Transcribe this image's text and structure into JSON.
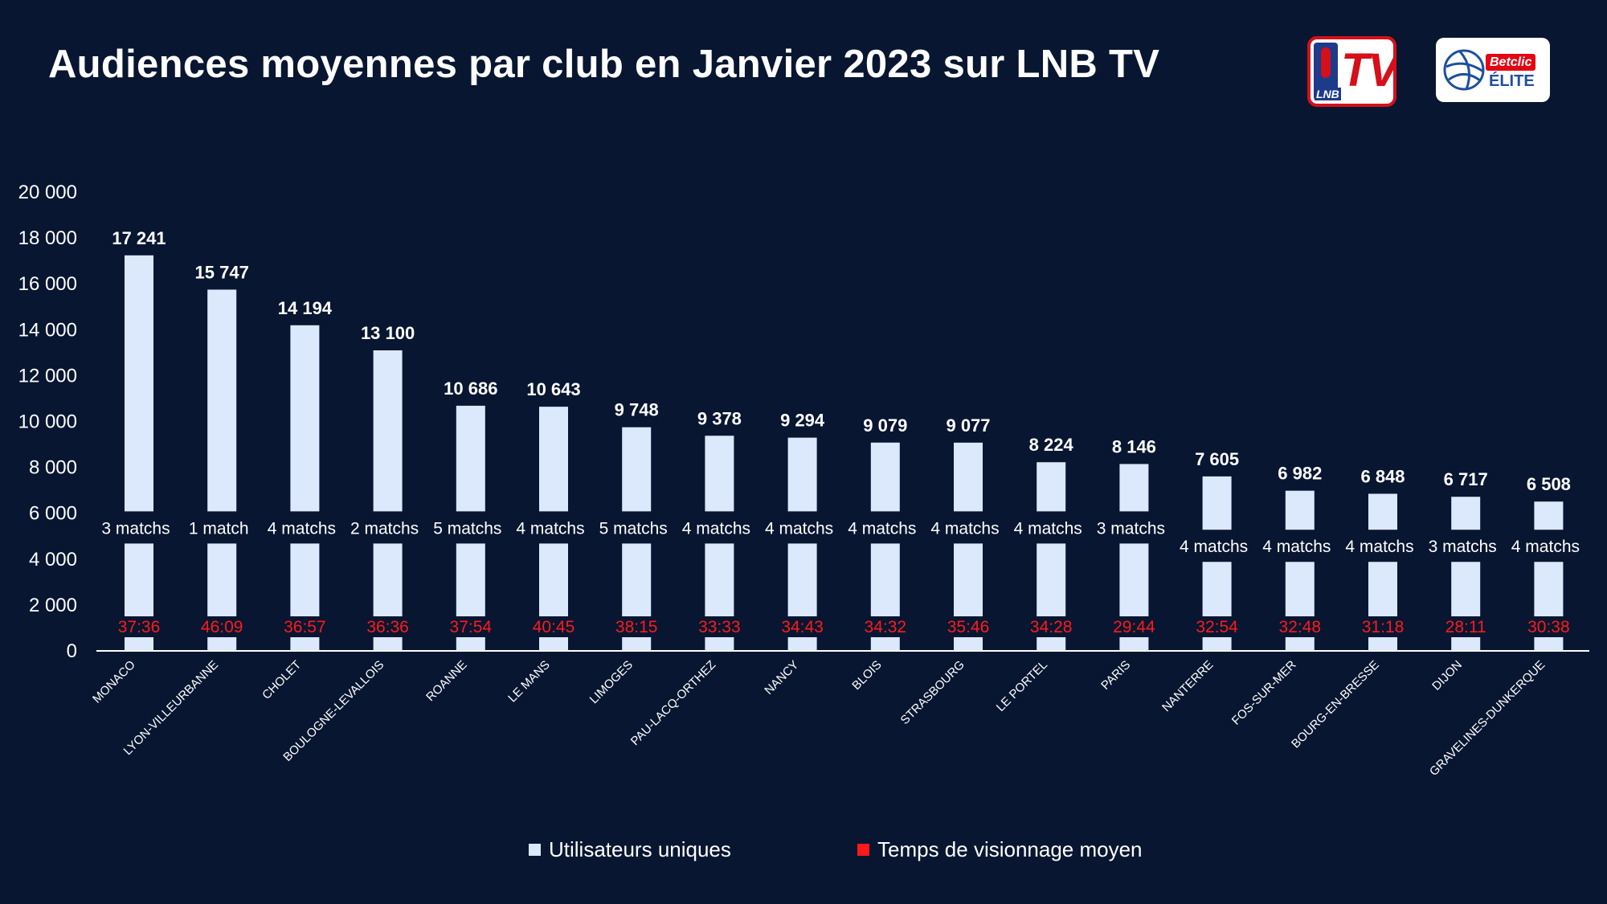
{
  "header": {
    "title": "Audiences moyennes par club en Janvier 2023 sur LNB TV",
    "logo_lnbtv": {
      "small_text": "LNB",
      "big_text": "TV"
    },
    "logo_betclic": {
      "brand": "Betclic",
      "league": "ÉLITE"
    }
  },
  "colors": {
    "background": "#081631",
    "bar": "#dce8fb",
    "time_text": "#ff1a1a",
    "axis": "#ffffff"
  },
  "chart_data": {
    "type": "bar",
    "title": "Audiences moyennes par club en Janvier 2023 sur LNB TV",
    "xlabel": "",
    "ylabel": "",
    "ylim": [
      0,
      20000
    ],
    "yticks": [
      0,
      2000,
      4000,
      6000,
      8000,
      10000,
      12000,
      14000,
      16000,
      18000,
      20000
    ],
    "ytick_labels": [
      "0",
      "2 000",
      "4 000",
      "6 000",
      "8 000",
      "10 000",
      "12 000",
      "14 000",
      "16 000",
      "18 000",
      "20 000"
    ],
    "categories": [
      "MONACO",
      "LYON-VILLEURBANNE",
      "CHOLET",
      "BOULOGNE-LEVALLOIS",
      "ROANNE",
      "LE MANS",
      "LIMOGES",
      "PAU-LACQ-ORTHEZ",
      "NANCY",
      "BLOIS",
      "STRASBOURG",
      "LE PORTEL",
      "PARIS",
      "NANTERRE",
      "FOS-SUR-MER",
      "BOURG-EN-BRESSE",
      "DIJON",
      "GRAVELINES-DUNKERQUE"
    ],
    "series": [
      {
        "name": "Utilisateurs uniques",
        "values": [
          17241,
          15747,
          14194,
          13100,
          10686,
          10643,
          9748,
          9378,
          9294,
          9079,
          9077,
          8224,
          8146,
          7605,
          6982,
          6848,
          6717,
          6508
        ],
        "value_labels": [
          "17 241",
          "15 747",
          "14 194",
          "13 100",
          "10 686",
          "10 643",
          "9 748",
          "9 378",
          "9 294",
          "9 079",
          "9 077",
          "8 224",
          "8 146",
          "7 605",
          "6 982",
          "6 848",
          "6 717",
          "6 508"
        ]
      },
      {
        "name": "Temps de visionnage moyen",
        "labels": [
          "37:36",
          "46:09",
          "36:57",
          "36:36",
          "37:54",
          "40:45",
          "38:15",
          "33:33",
          "34:43",
          "34:32",
          "35:46",
          "34:28",
          "29:44",
          "32:54",
          "32:48",
          "31:18",
          "28:11",
          "30:38"
        ]
      }
    ],
    "matches": [
      "3 matchs",
      "1 match",
      "4 matchs",
      "2 matchs",
      "5 matchs",
      "4 matchs",
      "5 matchs",
      "4 matchs",
      "4 matchs",
      "4 matchs",
      "4 matchs",
      "4 matchs",
      "3 matchs",
      "4 matchs",
      "4 matchs",
      "4 matchs",
      "3 matchs",
      "4 matchs"
    ],
    "legend": [
      {
        "label": "Utilisateurs uniques",
        "color": "#dce8fb"
      },
      {
        "label": "Temps de visionnage moyen",
        "color": "#ff1a1a"
      }
    ],
    "legend_position": "bottom"
  }
}
